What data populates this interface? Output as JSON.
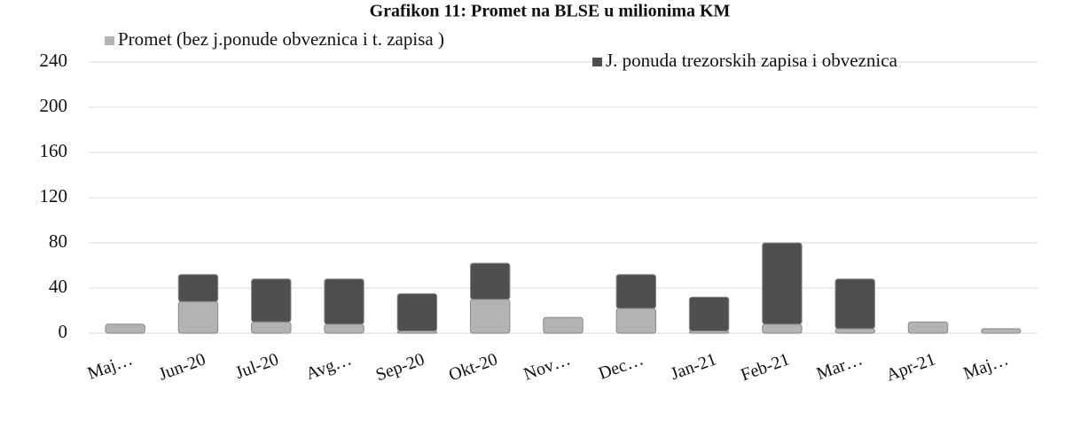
{
  "chart_data": {
    "type": "stacked_bar",
    "title": "Grafikon 11: Promet na BLSE u milionima KM",
    "categories": [
      "Maj…",
      "Jun-20",
      "Jul-20",
      "Avg…",
      "Sep-20",
      "Okt-20",
      "Nov…",
      "Dec…",
      "Jan-21",
      "Feb-21",
      "Mar…",
      "Apr-21",
      "Maj…"
    ],
    "series": [
      {
        "name": "Promet (bez j.ponude obveznica i t. zapisa )",
        "color": "#b3b3b3",
        "values": [
          8,
          28,
          10,
          8,
          2,
          30,
          14,
          22,
          2,
          8,
          4,
          10,
          4
        ]
      },
      {
        "name": "J. ponuda  trezorskih zapisa i obveznica",
        "color": "#4f4f4f",
        "values": [
          0,
          24,
          38,
          40,
          33,
          32,
          0,
          30,
          30,
          72,
          44,
          0,
          0
        ]
      }
    ],
    "ylim": [
      0,
      240
    ],
    "yticks": [
      0,
      40,
      80,
      120,
      160,
      200,
      240
    ],
    "grid": true,
    "legend": "top"
  }
}
